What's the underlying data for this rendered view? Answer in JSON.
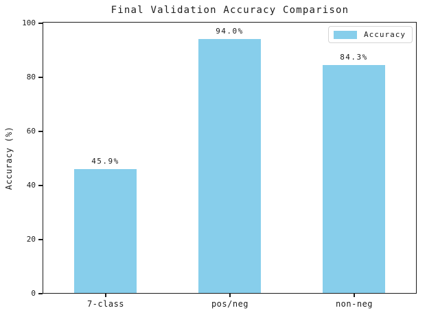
{
  "chart_data": {
    "type": "bar",
    "title": "Final Validation Accuracy Comparison",
    "categories": [
      "7-class",
      "pos/neg",
      "non-neg"
    ],
    "values": [
      45.9,
      94.0,
      84.3
    ],
    "bar_labels": [
      "45.9%",
      "94.0%",
      "84.3%"
    ],
    "xlabel": "",
    "ylabel": "Accuracy (%)",
    "ylim": [
      0,
      100
    ],
    "yticks": [
      0,
      20,
      40,
      60,
      80,
      100
    ],
    "grid": false,
    "legend": {
      "position": "upper right",
      "entries": [
        {
          "label": "Accuracy",
          "color": "#87CEEB"
        }
      ]
    },
    "colors": {
      "bar": "#87CEEB",
      "axis": "#1a1a1a",
      "text": "#1a1a1a",
      "legend_border": "#d5d5d5",
      "background": "#ffffff"
    }
  }
}
